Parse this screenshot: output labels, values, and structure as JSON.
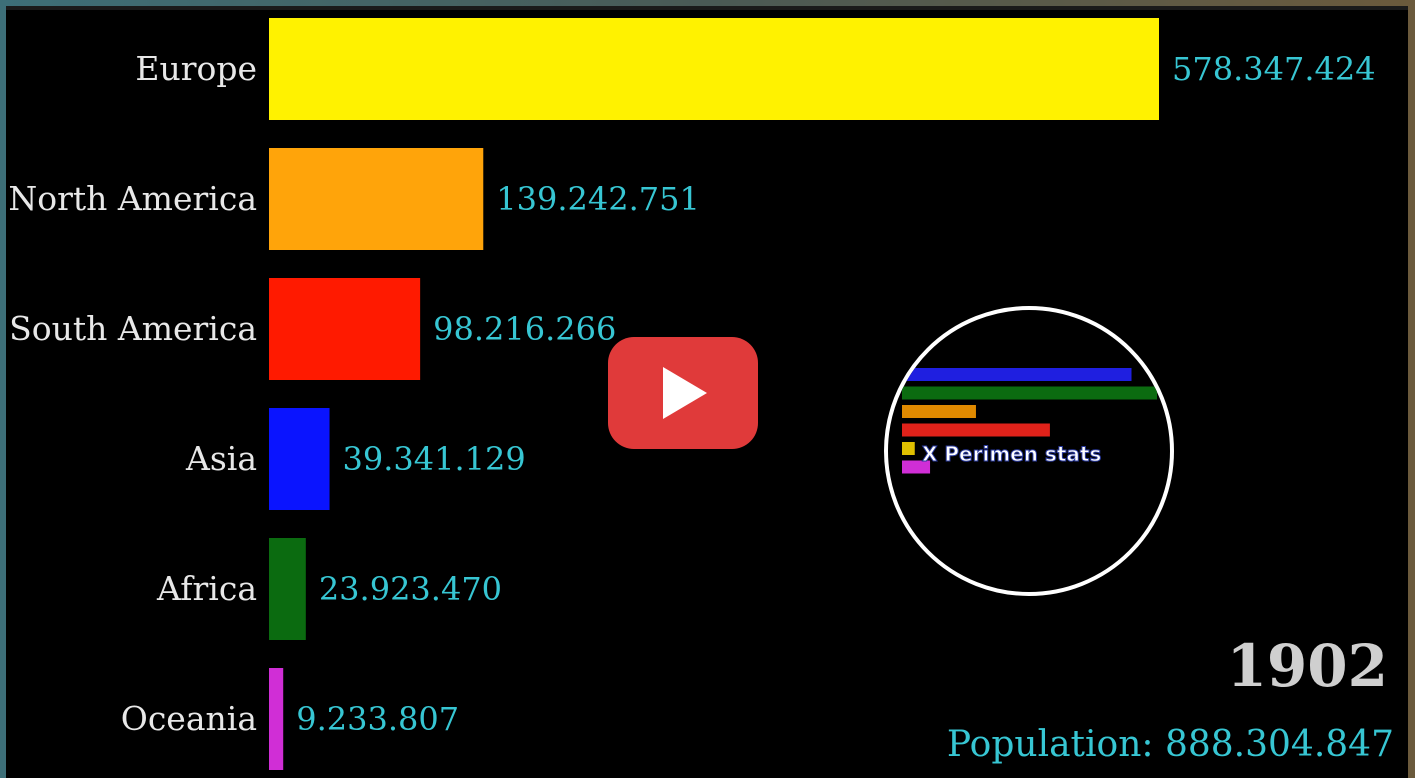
{
  "chart_data": {
    "type": "bar",
    "orientation": "horizontal",
    "categories": [
      "Europe",
      "North America",
      "South America",
      "Asia",
      "Africa",
      "Oceania"
    ],
    "values": [
      578347424,
      139242751,
      98216266,
      39341129,
      23923470,
      9233807
    ],
    "value_labels": [
      "578.347.424",
      "139.242.751",
      "98.216.266",
      "39.341.129",
      "23.923.470",
      "9.233.807"
    ],
    "colors": [
      "#fff200",
      "#ffa40a",
      "#ff1a00",
      "#0a14ff",
      "#0b6b10",
      "#d02ed6"
    ],
    "xlim": [
      0,
      578347424
    ],
    "grid": false,
    "legend": "none"
  },
  "year": "1902",
  "total_label": "Population: 888.304.847",
  "watermark": {
    "text": "X Perimen stats",
    "bar_colors": [
      "#1f1fe0",
      "#0b6b10",
      "#e08a00",
      "#e0221a",
      "#e0c000",
      "#d02ed6"
    ],
    "bar_values": [
      0.9,
      1.0,
      0.29,
      0.58,
      0.05,
      0.11
    ]
  },
  "play_button": {
    "icon": "play-icon"
  }
}
